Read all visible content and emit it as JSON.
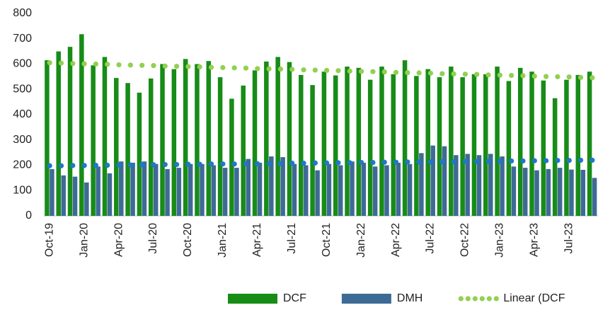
{
  "chart_data": {
    "type": "bar",
    "categories": [
      "Oct-19",
      null,
      null,
      "Jan-20",
      null,
      null,
      "Apr-20",
      null,
      null,
      "Jul-20",
      null,
      null,
      "Oct-20",
      null,
      null,
      "Jan-21",
      null,
      null,
      "Apr-21",
      null,
      null,
      "Jul-21",
      null,
      null,
      "Oct-21",
      null,
      null,
      "Jan-22",
      null,
      null,
      "Apr-22",
      null,
      null,
      "Jul-22",
      null,
      null,
      "Oct-22",
      null,
      null,
      "Jan-23",
      null,
      null,
      "Apr-23",
      null,
      null,
      "Jul-23",
      null,
      null
    ],
    "series": [
      {
        "name": "DCF",
        "type": "bar",
        "color": "#178c17",
        "values": [
          615,
          650,
          668,
          718,
          595,
          628,
          545,
          525,
          487,
          543,
          600,
          580,
          620,
          600,
          612,
          548,
          463,
          515,
          575,
          610,
          628,
          608,
          557,
          517,
          570,
          555,
          590,
          585,
          538,
          590,
          560,
          615,
          553,
          580,
          548,
          590,
          548,
          560,
          560,
          590,
          533,
          585,
          570,
          535,
          465,
          538,
          557,
          570
        ]
      },
      {
        "name": "DMH",
        "type": "bar",
        "color": "#3e6a96",
        "values": [
          185,
          160,
          155,
          132,
          195,
          168,
          215,
          210,
          215,
          205,
          185,
          190,
          205,
          205,
          200,
          190,
          190,
          225,
          210,
          235,
          232,
          205,
          200,
          180,
          205,
          200,
          215,
          210,
          195,
          200,
          210,
          205,
          248,
          278,
          275,
          240,
          245,
          240,
          245,
          235,
          195,
          190,
          180,
          185,
          190,
          183,
          182,
          150
        ]
      },
      {
        "name": "Linear (DCF",
        "type": "dots",
        "color": "#92d050",
        "values": [
          605,
          604,
          602,
          601,
          600,
          599,
          597,
          596,
          595,
          594,
          592,
          591,
          590,
          589,
          587,
          586,
          585,
          584,
          582,
          581,
          580,
          579,
          577,
          576,
          575,
          574,
          572,
          571,
          570,
          569,
          567,
          566,
          565,
          564,
          562,
          561,
          560,
          559,
          557,
          556,
          555,
          554,
          552,
          551,
          550,
          549,
          547,
          546
        ]
      },
      {
        "type": "dots",
        "color": "#1f78c8",
        "values": [
          198,
          198,
          199,
          199,
          200,
          200,
          201,
          201,
          202,
          202,
          203,
          203,
          204,
          204,
          205,
          205,
          205,
          206,
          206,
          207,
          207,
          208,
          208,
          209,
          209,
          210,
          210,
          211,
          211,
          212,
          212,
          213,
          213,
          213,
          214,
          214,
          215,
          215,
          216,
          216,
          217,
          217,
          218,
          218,
          219,
          219,
          220,
          220
        ]
      }
    ],
    "ylim": [
      0,
      800
    ],
    "yticks": [
      0,
      100,
      200,
      300,
      400,
      500,
      600,
      700,
      800
    ],
    "legend": "bottom"
  }
}
